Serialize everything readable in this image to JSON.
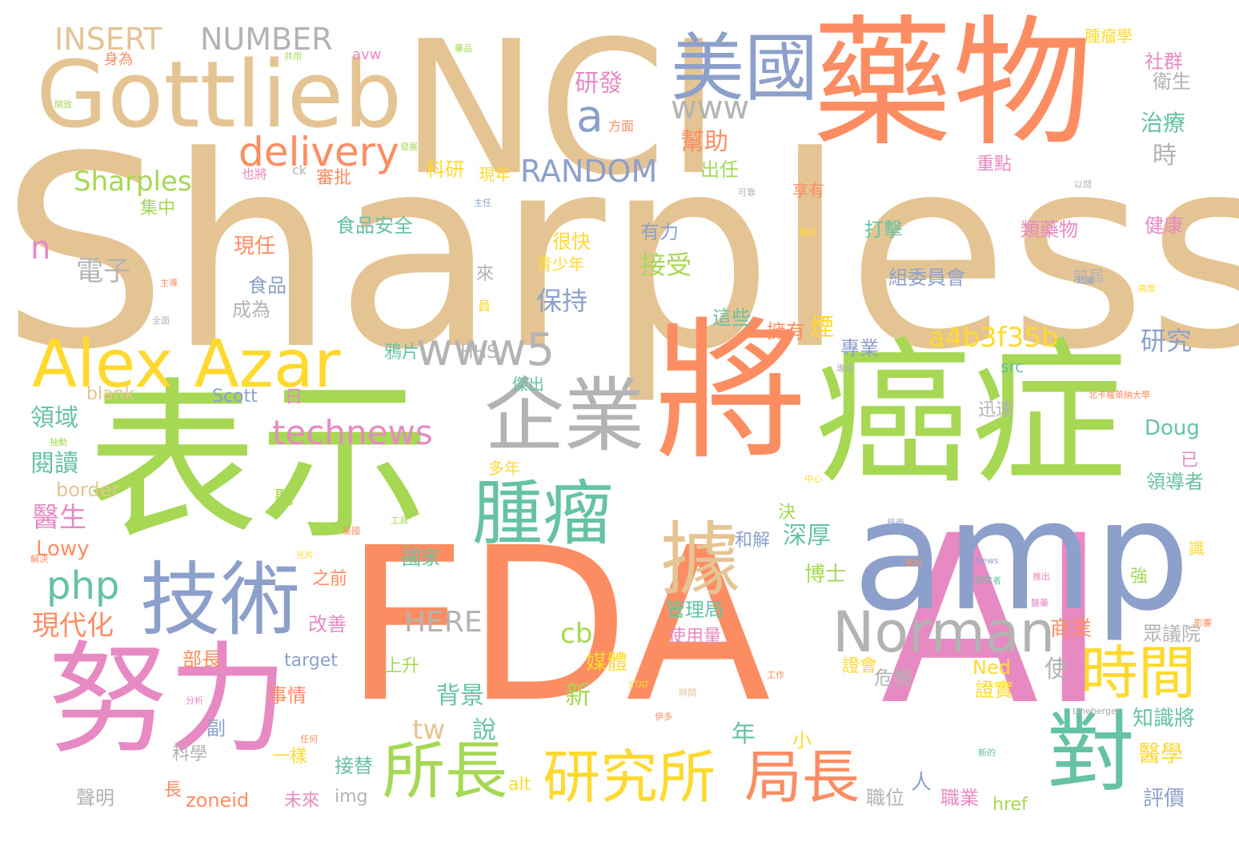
{
  "palette": {
    "tan": "#e5c494",
    "orange": "#fc8d62",
    "green": "#a6d854",
    "blue": "#8da0cb",
    "pink": "#e78ac3",
    "yellow": "#ffd92f",
    "teal": "#66c2a5",
    "gray": "#b3b3b3"
  },
  "words": [
    {
      "text": "Sharpless",
      "color": "tan"
    },
    {
      "text": "NCI",
      "color": "tan"
    },
    {
      "text": "Gottlieb",
      "color": "tan"
    },
    {
      "text": "藥物",
      "color": "orange"
    },
    {
      "text": "美國",
      "color": "blue"
    },
    {
      "text": "將",
      "color": "orange"
    },
    {
      "text": "癌症",
      "color": "green"
    },
    {
      "text": "表示",
      "color": "green"
    },
    {
      "text": "FDA",
      "color": "orange"
    },
    {
      "text": "AI",
      "color": "pink"
    },
    {
      "text": "amp",
      "color": "blue"
    },
    {
      "text": "努力",
      "color": "pink"
    },
    {
      "text": "技術",
      "color": "blue"
    },
    {
      "text": "企業",
      "color": "gray"
    },
    {
      "text": "腫瘤",
      "color": "teal"
    },
    {
      "text": "據",
      "color": "tan"
    },
    {
      "text": "Alex Azar",
      "color": "yellow"
    },
    {
      "text": "Norman",
      "color": "gray"
    },
    {
      "text": "時間",
      "color": "yellow"
    },
    {
      "text": "對",
      "color": "teal"
    },
    {
      "text": "研究所",
      "color": "yellow"
    },
    {
      "text": "所長",
      "color": "green"
    },
    {
      "text": "局長",
      "color": "orange"
    },
    {
      "text": "www5",
      "color": "gray"
    },
    {
      "text": "technews",
      "color": "pink"
    },
    {
      "text": "delivery",
      "color": "orange"
    },
    {
      "text": "INSERT",
      "color": "tan"
    },
    {
      "text": "NUMBER",
      "color": "gray"
    },
    {
      "text": "www",
      "color": "gray"
    },
    {
      "text": "a",
      "color": "blue"
    },
    {
      "text": "研發",
      "color": "pink"
    },
    {
      "text": "幫助",
      "color": "orange"
    },
    {
      "text": "RANDOM",
      "color": "blue"
    },
    {
      "text": "Sharples",
      "color": "green"
    },
    {
      "text": "a4b3f35b",
      "color": "yellow"
    },
    {
      "text": "php",
      "color": "teal"
    },
    {
      "text": "HERE",
      "color": "gray"
    },
    {
      "text": "cb",
      "color": "green"
    },
    {
      "text": "n",
      "color": "pink"
    },
    {
      "text": "電子",
      "color": "gray"
    },
    {
      "text": "接受",
      "color": "green"
    },
    {
      "text": "保持",
      "color": "blue"
    },
    {
      "text": "食品安全",
      "color": "teal"
    },
    {
      "text": "有力",
      "color": "blue"
    },
    {
      "text": "打擊",
      "color": "teal"
    },
    {
      "text": "類藥物",
      "color": "pink"
    },
    {
      "text": "健康",
      "color": "pink"
    },
    {
      "text": "治療",
      "color": "teal"
    },
    {
      "text": "衛生",
      "color": "gray"
    },
    {
      "text": "腫瘤學",
      "color": "yellow"
    },
    {
      "text": "社群",
      "color": "pink"
    },
    {
      "text": "時",
      "color": "gray"
    },
    {
      "text": "重點",
      "color": "pink"
    },
    {
      "text": "享有",
      "color": "orange"
    },
    {
      "text": "科研",
      "color": "yellow"
    },
    {
      "text": "現年",
      "color": "yellow"
    },
    {
      "text": "出任",
      "color": "green"
    },
    {
      "text": "審批",
      "color": "orange"
    },
    {
      "text": "集中",
      "color": "green"
    },
    {
      "text": "現任",
      "color": "orange"
    },
    {
      "text": "很快",
      "color": "yellow"
    },
    {
      "text": "青少年",
      "color": "yellow"
    },
    {
      "text": "食品",
      "color": "blue"
    },
    {
      "text": "成為",
      "color": "gray"
    },
    {
      "text": "來",
      "color": "gray"
    },
    {
      "text": "組委員會",
      "color": "blue"
    },
    {
      "text": "前局",
      "color": "gray"
    },
    {
      "text": "這些",
      "color": "teal"
    },
    {
      "text": "擁有",
      "color": "orange"
    },
    {
      "text": "煙",
      "color": "yellow"
    },
    {
      "text": "專業",
      "color": "blue"
    },
    {
      "text": "研究",
      "color": "blue"
    },
    {
      "text": "鴉片",
      "color": "teal"
    },
    {
      "text": "HHS",
      "color": "gray"
    },
    {
      "text": "src",
      "color": "teal"
    },
    {
      "text": "blank",
      "color": "tan"
    },
    {
      "text": "Scott",
      "color": "blue"
    },
    {
      "text": "日",
      "color": "pink"
    },
    {
      "text": "傑出",
      "color": "teal"
    },
    {
      "text": "迅速",
      "color": "gray"
    },
    {
      "text": "Doug",
      "color": "teal"
    },
    {
      "text": "領域",
      "color": "teal"
    },
    {
      "text": "閱讀",
      "color": "teal"
    },
    {
      "text": "border",
      "color": "tan"
    },
    {
      "text": "醫生",
      "color": "pink"
    },
    {
      "text": "聽",
      "color": "green"
    },
    {
      "text": "決",
      "color": "green"
    },
    {
      "text": "深厚",
      "color": "teal"
    },
    {
      "text": "和解",
      "color": "blue"
    },
    {
      "text": "博士",
      "color": "green"
    },
    {
      "text": "多年",
      "color": "yellow"
    },
    {
      "text": "已",
      "color": "pink"
    },
    {
      "text": "領導者",
      "color": "teal"
    },
    {
      "text": "Lowy",
      "color": "orange"
    },
    {
      "text": "國家",
      "color": "teal"
    },
    {
      "text": "之前",
      "color": "orange"
    },
    {
      "text": "現代化",
      "color": "orange"
    },
    {
      "text": "改善",
      "color": "pink"
    },
    {
      "text": "管理局",
      "color": "teal"
    },
    {
      "text": "使用量",
      "color": "pink"
    },
    {
      "text": "商業",
      "color": "orange"
    },
    {
      "text": "眾議院",
      "color": "gray"
    },
    {
      "text": "部長",
      "color": "orange"
    },
    {
      "text": "target",
      "color": "blue"
    },
    {
      "text": "媒體",
      "color": "yellow"
    },
    {
      "text": "Ned",
      "color": "yellow"
    },
    {
      "text": "使",
      "color": "gray"
    },
    {
      "text": "證會",
      "color": "yellow"
    },
    {
      "text": "上升",
      "color": "green"
    },
    {
      "text": "新",
      "color": "green"
    },
    {
      "text": "背景",
      "color": "teal"
    },
    {
      "text": "危機",
      "color": "gray"
    },
    {
      "text": "證實",
      "color": "yellow"
    },
    {
      "text": "知識將",
      "color": "teal"
    },
    {
      "text": "醫學",
      "color": "yellow"
    },
    {
      "text": "副",
      "color": "blue"
    },
    {
      "text": "事情",
      "color": "orange"
    },
    {
      "text": "tw",
      "color": "tan"
    },
    {
      "text": "說",
      "color": "teal"
    },
    {
      "text": "年",
      "color": "teal"
    },
    {
      "text": "小",
      "color": "yellow"
    },
    {
      "text": "科學",
      "color": "gray"
    },
    {
      "text": "一樣",
      "color": "yellow"
    },
    {
      "text": "人",
      "color": "blue"
    },
    {
      "text": "接替",
      "color": "teal"
    },
    {
      "text": "評價",
      "color": "blue"
    },
    {
      "text": "長",
      "color": "orange"
    },
    {
      "text": "聲明",
      "color": "gray"
    },
    {
      "text": "zoneid",
      "color": "orange"
    },
    {
      "text": "未來",
      "color": "pink"
    },
    {
      "text": "img",
      "color": "gray"
    },
    {
      "text": "alt",
      "color": "yellow"
    },
    {
      "text": "職位",
      "color": "gray"
    },
    {
      "text": "職業",
      "color": "pink"
    },
    {
      "text": "href",
      "color": "green"
    },
    {
      "text": "avw",
      "color": "pink"
    },
    {
      "text": "ck",
      "color": "gray"
    },
    {
      "text": "方面",
      "color": "orange"
    },
    {
      "text": "也將",
      "color": "pink"
    },
    {
      "text": "身為",
      "color": "orange"
    },
    {
      "text": "員",
      "color": "yellow"
    },
    {
      "text": "強",
      "color": "green"
    },
    {
      "text": "識",
      "color": "yellow"
    },
    {
      "text": "Lineberger",
      "color": "gray"
    },
    {
      "text": "News",
      "color": "blue"
    },
    {
      "text": "STAT",
      "color": "yellow"
    },
    {
      "text": "工作",
      "color": "orange"
    },
    {
      "text": "影響",
      "color": "orange"
    },
    {
      "text": "北卡羅萊納大學",
      "color": "orange"
    },
    {
      "text": "中心",
      "color": "yellow"
    },
    {
      "text": "分析",
      "color": "pink"
    },
    {
      "text": "任何",
      "color": "orange"
    },
    {
      "text": "伊多",
      "color": "orange"
    },
    {
      "text": "工具",
      "color": "green"
    },
    {
      "text": "美國",
      "color": "orange"
    },
    {
      "text": "光片",
      "color": "yellow"
    },
    {
      "text": "解決",
      "color": "orange"
    },
    {
      "text": "抽動",
      "color": "green"
    },
    {
      "text": "共用",
      "color": "green"
    },
    {
      "text": "以問",
      "color": "gray"
    },
    {
      "text": "高度",
      "color": "yellow"
    },
    {
      "text": "可靠",
      "color": "gray"
    },
    {
      "text": "專家",
      "color": "gray"
    },
    {
      "text": "資料",
      "color": "orange"
    },
    {
      "text": "開放",
      "color": "green"
    },
    {
      "text": "主任",
      "color": "blue"
    },
    {
      "text": "發展",
      "color": "green"
    },
    {
      "text": "聯邦",
      "color": "yellow"
    },
    {
      "text": "推出",
      "color": "pink"
    },
    {
      "text": "Lineberger",
      "color": "gray"
    },
    {
      "text": "研究者",
      "color": "teal"
    },
    {
      "text": "醫藥",
      "color": "pink"
    },
    {
      "text": "知識",
      "color": "blue"
    },
    {
      "text": "新的",
      "color": "teal"
    },
    {
      "text": "全面",
      "color": "gray"
    },
    {
      "text": "藥品",
      "color": "green"
    },
    {
      "text": "局面",
      "color": "blue"
    },
    {
      "text": "時間",
      "color": "tan"
    },
    {
      "text": "主導",
      "color": "orange"
    }
  ]
}
